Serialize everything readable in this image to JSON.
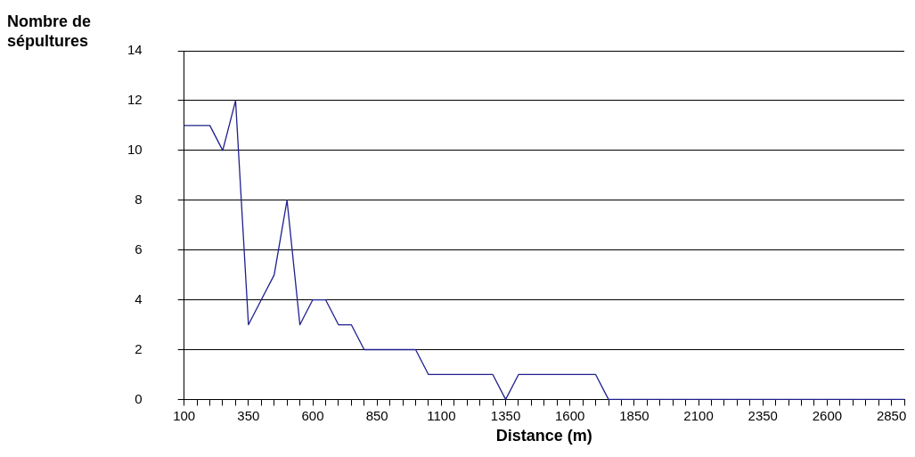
{
  "chart_data": {
    "type": "line",
    "xlabel": "Distance (m)",
    "ylabel": "Nombre de sépultures",
    "categories": [
      "100",
      null,
      null,
      null,
      null,
      "350",
      null,
      null,
      null,
      null,
      "600",
      null,
      null,
      null,
      null,
      "850",
      null,
      null,
      null,
      null,
      "1100",
      null,
      null,
      null,
      null,
      "1350",
      null,
      null,
      null,
      null,
      "1600",
      null,
      null,
      null,
      null,
      "1850",
      null,
      null,
      null,
      null,
      "2100",
      null,
      null,
      null,
      null,
      "2350",
      null,
      null,
      null,
      null,
      "2600",
      null,
      null,
      null,
      null,
      "2850",
      null
    ],
    "series": [
      {
        "color": "#1f1f8f",
        "values": [
          11,
          11,
          11,
          10,
          12,
          3,
          4,
          5,
          8,
          3,
          4,
          4,
          3,
          3,
          2,
          2,
          2,
          2,
          2,
          1,
          1,
          1,
          1,
          1,
          1,
          0,
          1,
          1,
          1,
          1,
          1,
          1,
          1,
          0,
          0,
          0,
          0,
          0,
          0,
          0,
          0,
          0,
          0,
          0,
          0,
          0,
          0,
          0,
          0,
          0,
          0,
          0,
          0,
          0,
          0,
          0,
          0
        ]
      }
    ],
    "ylim": [
      0,
      14
    ],
    "yticks": [
      0,
      2,
      4,
      6,
      8,
      10,
      12,
      14
    ],
    "grid": "y",
    "marker": "none",
    "line_style": "solid",
    "legend": false
  }
}
